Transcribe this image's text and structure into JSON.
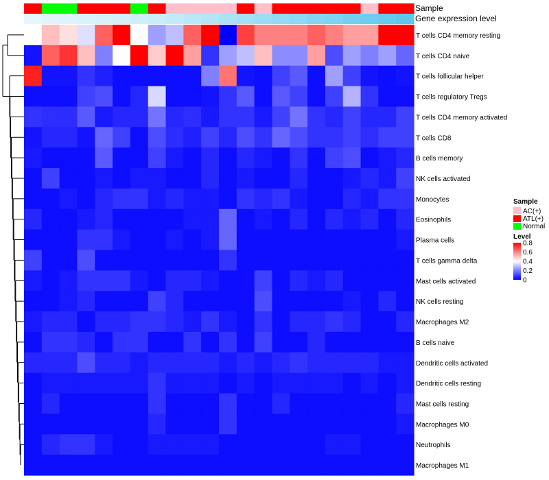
{
  "chart_data": {
    "type": "heatmap",
    "annotation_names": {
      "sample": "Sample",
      "gene_expression": "Gene expression level"
    },
    "rows": [
      "T cells CD4 memory resting",
      "T cells CD4 naive",
      "T cells follicular helper",
      "T cells regulatory  Tregs",
      "T cells CD4 memory activated",
      "T cells CD8",
      "B cells memory",
      "NK cells activated",
      "Monocytes",
      "Eosinophils",
      "Plasma cells",
      "T cells gamma delta",
      "Mast cells activated",
      "NK cells resting",
      "Macrophages M2",
      "B cells naive",
      "Dendritic cells activated",
      "Dendritic cells resting",
      "Mast cells resting",
      "Macrophages M0",
      "Neutrophils",
      "Macrophages M1"
    ],
    "sample_groups": [
      "ATL(+)",
      "Normal",
      "Normal",
      "ATL(+)",
      "ATL(+)",
      "ATL(+)",
      "Normal",
      "ATL(+)",
      "AC(+)",
      "AC(+)",
      "AC(+)",
      "AC(+)",
      "ATL(+)",
      "AC(+)",
      "ATL(+)",
      "ATL(+)",
      "ATL(+)",
      "ATL(+)",
      "ATL(+)",
      "AC(+)",
      "ATL(+)",
      "ATL(+)"
    ],
    "gene_expression_level": [
      0.12,
      0.14,
      0.16,
      0.18,
      0.2,
      0.22,
      0.24,
      0.26,
      0.3,
      0.34,
      0.38,
      0.42,
      0.46,
      0.5,
      0.54,
      0.58,
      0.62,
      0.66,
      0.7,
      0.74,
      0.78,
      0.82
    ],
    "values": [
      [
        0.4,
        0.5,
        0.45,
        0.35,
        0.65,
        0.8,
        0.4,
        0.25,
        0.3,
        0.65,
        0.8,
        0.0,
        0.7,
        0.6,
        0.6,
        0.6,
        0.65,
        0.6,
        0.55,
        0.55,
        0.8,
        0.8
      ],
      [
        0.03,
        0.65,
        0.72,
        0.5,
        0.2,
        0.4,
        0.8,
        0.48,
        0.8,
        0.55,
        0.08,
        0.25,
        0.3,
        0.5,
        0.22,
        0.22,
        0.55,
        0.12,
        0.25,
        0.2,
        0.25,
        0.16
      ],
      [
        0.75,
        0.03,
        0.03,
        0.08,
        0.05,
        0.02,
        0.02,
        0.02,
        0.02,
        0.02,
        0.2,
        0.62,
        0.03,
        0.02,
        0.1,
        0.14,
        0.02,
        0.25,
        0.1,
        0.03,
        0.02,
        0.03
      ],
      [
        0.02,
        0.02,
        0.02,
        0.1,
        0.12,
        0.02,
        0.06,
        0.34,
        0.02,
        0.02,
        0.03,
        0.08,
        0.14,
        0.02,
        0.14,
        0.1,
        0.02,
        0.1,
        0.28,
        0.08,
        0.02,
        0.02
      ],
      [
        0.08,
        0.07,
        0.07,
        0.14,
        0.04,
        0.06,
        0.06,
        0.18,
        0.06,
        0.07,
        0.04,
        0.08,
        0.08,
        0.04,
        0.1,
        0.18,
        0.08,
        0.06,
        0.1,
        0.06,
        0.06,
        0.1
      ],
      [
        0.03,
        0.06,
        0.06,
        0.03,
        0.16,
        0.1,
        0.02,
        0.12,
        0.07,
        0.05,
        0.1,
        0.06,
        0.12,
        0.08,
        0.16,
        0.12,
        0.08,
        0.08,
        0.1,
        0.07,
        0.1,
        0.1
      ],
      [
        0.04,
        0.02,
        0.02,
        0.02,
        0.14,
        0.02,
        0.02,
        0.1,
        0.04,
        0.02,
        0.06,
        0.02,
        0.06,
        0.04,
        0.02,
        0.08,
        0.02,
        0.1,
        0.12,
        0.02,
        0.04,
        0.06
      ],
      [
        0.02,
        0.1,
        0.02,
        0.02,
        0.04,
        0.02,
        0.04,
        0.04,
        0.02,
        0.02,
        0.06,
        0.02,
        0.04,
        0.02,
        0.02,
        0.06,
        0.02,
        0.02,
        0.04,
        0.06,
        0.04,
        0.1
      ],
      [
        0.02,
        0.02,
        0.04,
        0.02,
        0.06,
        0.08,
        0.08,
        0.04,
        0.06,
        0.04,
        0.04,
        0.02,
        0.08,
        0.06,
        0.08,
        0.04,
        0.02,
        0.02,
        0.06,
        0.04,
        0.08,
        0.08
      ],
      [
        0.06,
        0.02,
        0.02,
        0.04,
        0.06,
        0.02,
        0.02,
        0.02,
        0.02,
        0.04,
        0.04,
        0.16,
        0.02,
        0.04,
        0.02,
        0.06,
        0.02,
        0.06,
        0.04,
        0.06,
        0.02,
        0.06
      ],
      [
        0.02,
        0.02,
        0.02,
        0.08,
        0.08,
        0.04,
        0.02,
        0.02,
        0.04,
        0.02,
        0.04,
        0.16,
        0.02,
        0.02,
        0.02,
        0.02,
        0.02,
        0.02,
        0.02,
        0.02,
        0.02,
        0.04
      ],
      [
        0.1,
        0.02,
        0.02,
        0.12,
        0.02,
        0.02,
        0.02,
        0.02,
        0.02,
        0.02,
        0.02,
        0.08,
        0.02,
        0.02,
        0.02,
        0.02,
        0.02,
        0.02,
        0.02,
        0.02,
        0.02,
        0.02
      ],
      [
        0.04,
        0.02,
        0.04,
        0.08,
        0.08,
        0.08,
        0.04,
        0.02,
        0.06,
        0.06,
        0.04,
        0.02,
        0.02,
        0.1,
        0.02,
        0.06,
        0.04,
        0.06,
        0.02,
        0.02,
        0.02,
        0.02
      ],
      [
        0.02,
        0.02,
        0.04,
        0.06,
        0.02,
        0.02,
        0.02,
        0.1,
        0.06,
        0.02,
        0.02,
        0.02,
        0.02,
        0.12,
        0.02,
        0.02,
        0.02,
        0.02,
        0.04,
        0.02,
        0.06,
        0.02
      ],
      [
        0.04,
        0.06,
        0.06,
        0.02,
        0.06,
        0.06,
        0.08,
        0.08,
        0.06,
        0.04,
        0.08,
        0.04,
        0.02,
        0.08,
        0.02,
        0.06,
        0.06,
        0.08,
        0.06,
        0.02,
        0.02,
        0.06
      ],
      [
        0.02,
        0.08,
        0.08,
        0.06,
        0.02,
        0.08,
        0.08,
        0.02,
        0.02,
        0.08,
        0.02,
        0.08,
        0.02,
        0.1,
        0.02,
        0.02,
        0.06,
        0.02,
        0.02,
        0.02,
        0.02,
        0.02
      ],
      [
        0.06,
        0.06,
        0.06,
        0.12,
        0.06,
        0.06,
        0.04,
        0.06,
        0.06,
        0.06,
        0.06,
        0.04,
        0.06,
        0.04,
        0.06,
        0.08,
        0.06,
        0.06,
        0.06,
        0.06,
        0.04,
        0.04
      ],
      [
        0.02,
        0.04,
        0.04,
        0.04,
        0.04,
        0.04,
        0.04,
        0.08,
        0.04,
        0.04,
        0.04,
        0.02,
        0.04,
        0.02,
        0.04,
        0.04,
        0.04,
        0.04,
        0.02,
        0.04,
        0.02,
        0.04
      ],
      [
        0.02,
        0.06,
        0.02,
        0.02,
        0.02,
        0.02,
        0.02,
        0.08,
        0.02,
        0.02,
        0.02,
        0.08,
        0.02,
        0.02,
        0.06,
        0.02,
        0.02,
        0.02,
        0.02,
        0.02,
        0.02,
        0.06
      ],
      [
        0.02,
        0.02,
        0.02,
        0.02,
        0.02,
        0.02,
        0.02,
        0.06,
        0.02,
        0.02,
        0.02,
        0.08,
        0.02,
        0.02,
        0.02,
        0.02,
        0.02,
        0.02,
        0.02,
        0.02,
        0.02,
        0.04
      ],
      [
        0.02,
        0.06,
        0.08,
        0.08,
        0.04,
        0.02,
        0.02,
        0.04,
        0.04,
        0.04,
        0.04,
        0.02,
        0.02,
        0.02,
        0.02,
        0.02,
        0.02,
        0.04,
        0.04,
        0.02,
        0.02,
        0.02
      ],
      [
        0.02,
        0.02,
        0.02,
        0.02,
        0.02,
        0.02,
        0.02,
        0.02,
        0.02,
        0.02,
        0.02,
        0.02,
        0.02,
        0.02,
        0.02,
        0.02,
        0.02,
        0.02,
        0.02,
        0.02,
        0.02,
        0.02
      ]
    ],
    "color_scale": {
      "stops": [
        {
          "value": 0,
          "color": "#0000ff"
        },
        {
          "value": 0.4,
          "color": "#ffffff"
        },
        {
          "value": 0.8,
          "color": "#ff0000"
        }
      ]
    },
    "sample_colors": {
      "AC(+)": "#ffc0cb",
      "ATL(+)": "#ff0000",
      "Normal": "#00ff00"
    },
    "gene_expression_colors": {
      "low": "#e6f6fc",
      "high": "#5ec8ee"
    },
    "legend": {
      "sample_title": "Sample",
      "sample_entries": [
        "AC(+)",
        "ATL(+)",
        "Normal"
      ],
      "level_title": "Level",
      "level_ticks": [
        "0.8",
        "0.6",
        "0.4",
        "0.2",
        "0"
      ],
      "level_tick_values": [
        0.8,
        0.6,
        0.4,
        0.2,
        0
      ],
      "position": "right"
    },
    "row_dendrogram": "clustering tree on left"
  }
}
